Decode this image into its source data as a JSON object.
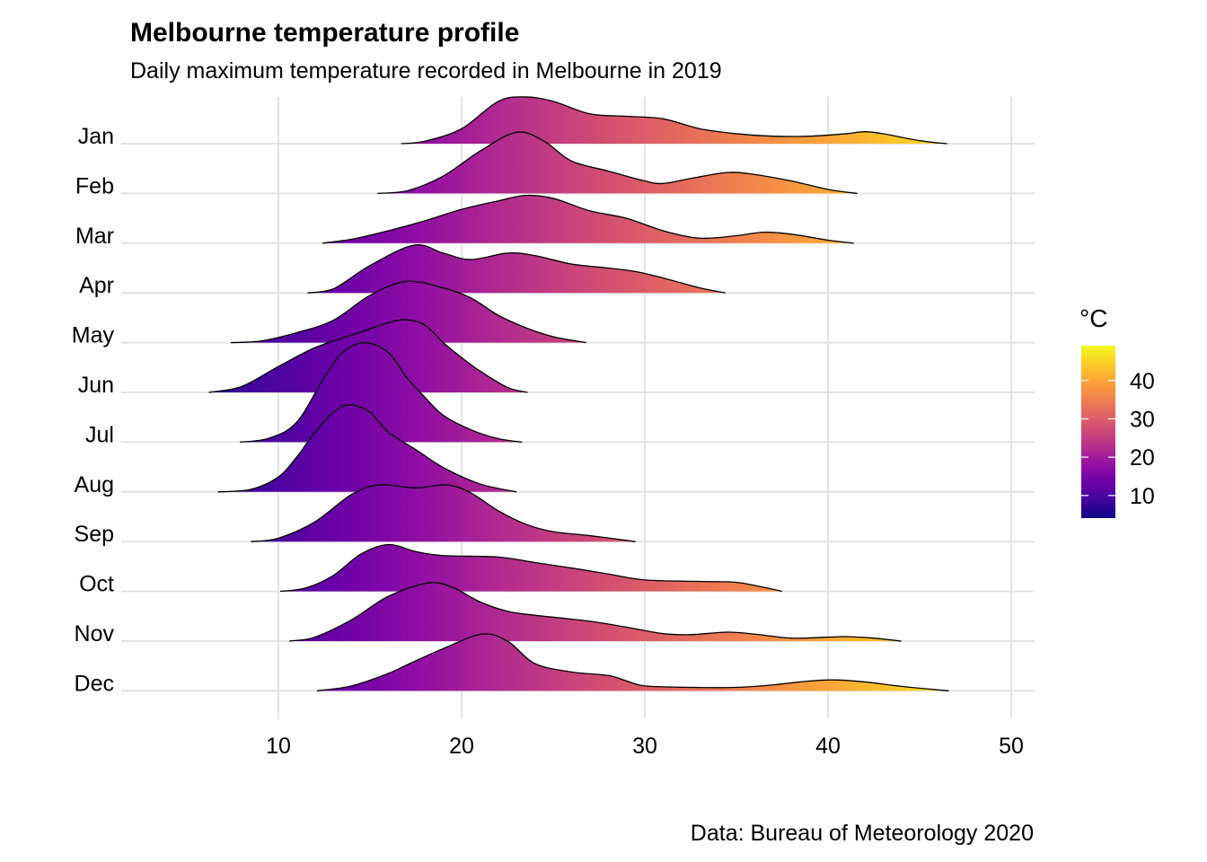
{
  "chart_data": {
    "type": "ridgeline",
    "title": "Melbourne temperature profile",
    "subtitle": "Daily maximum temperature recorded in Melbourne in 2019",
    "caption": "Data: Bureau of Meteorology 2020",
    "xlabel": "",
    "ylabel": "",
    "xlim": [
      1.5,
      51.2
    ],
    "x_ticks": [
      10,
      20,
      30,
      40,
      50
    ],
    "grid": true,
    "legend": {
      "title": "°C",
      "position": "right",
      "ticks": [
        10,
        20,
        30,
        40
      ],
      "range": [
        4.1,
        49.1
      ],
      "palette": "plasma",
      "colors": [
        "#0d0887",
        "#41049d",
        "#6a00a8",
        "#8f0da4",
        "#b12a90",
        "#cc4778",
        "#e16462",
        "#f2844b",
        "#fca636",
        "#fcce25",
        "#f0f921"
      ]
    },
    "series": [
      {
        "name": "Jan",
        "density": [
          [
            16.7,
            0
          ],
          [
            18,
            0.05
          ],
          [
            20,
            0.3
          ],
          [
            22,
            0.85
          ],
          [
            23.5,
            0.94
          ],
          [
            25,
            0.85
          ],
          [
            27,
            0.6
          ],
          [
            29,
            0.55
          ],
          [
            31,
            0.5
          ],
          [
            33,
            0.3
          ],
          [
            35,
            0.2
          ],
          [
            37,
            0.15
          ],
          [
            39,
            0.15
          ],
          [
            41,
            0.2
          ],
          [
            42,
            0.24
          ],
          [
            43,
            0.2
          ],
          [
            45,
            0.06
          ],
          [
            46.5,
            0
          ]
        ]
      },
      {
        "name": "Feb",
        "density": [
          [
            15.4,
            0
          ],
          [
            17,
            0.05
          ],
          [
            19,
            0.35
          ],
          [
            21,
            0.85
          ],
          [
            23,
            1.23
          ],
          [
            24.5,
            1.05
          ],
          [
            26,
            0.65
          ],
          [
            28,
            0.45
          ],
          [
            30,
            0.25
          ],
          [
            31,
            0.2
          ],
          [
            32.5,
            0.3
          ],
          [
            34.5,
            0.42
          ],
          [
            36,
            0.38
          ],
          [
            38,
            0.25
          ],
          [
            40,
            0.08
          ],
          [
            41.6,
            0
          ]
        ]
      },
      {
        "name": "Mar",
        "density": [
          [
            12.4,
            0
          ],
          [
            14,
            0.08
          ],
          [
            16,
            0.25
          ],
          [
            18,
            0.45
          ],
          [
            20,
            0.68
          ],
          [
            22,
            0.85
          ],
          [
            23.5,
            0.96
          ],
          [
            25,
            0.9
          ],
          [
            27,
            0.65
          ],
          [
            29,
            0.5
          ],
          [
            31,
            0.25
          ],
          [
            33,
            0.1
          ],
          [
            35,
            0.15
          ],
          [
            36.5,
            0.22
          ],
          [
            38,
            0.18
          ],
          [
            40,
            0.06
          ],
          [
            41.4,
            0
          ]
        ]
      },
      {
        "name": "Apr",
        "density": [
          [
            11.6,
            0
          ],
          [
            13,
            0.08
          ],
          [
            15,
            0.55
          ],
          [
            17.4,
            0.96
          ],
          [
            19,
            0.8
          ],
          [
            20.5,
            0.67
          ],
          [
            22.5,
            0.8
          ],
          [
            24,
            0.75
          ],
          [
            26,
            0.58
          ],
          [
            28,
            0.5
          ],
          [
            29.5,
            0.43
          ],
          [
            31,
            0.3
          ],
          [
            33,
            0.1
          ],
          [
            34.4,
            0
          ]
        ]
      },
      {
        "name": "May",
        "density": [
          [
            7.4,
            0
          ],
          [
            9,
            0.03
          ],
          [
            11,
            0.2
          ],
          [
            13,
            0.45
          ],
          [
            15,
            0.95
          ],
          [
            17,
            1.23
          ],
          [
            19,
            1.1
          ],
          [
            20.5,
            0.9
          ],
          [
            22,
            0.55
          ],
          [
            23.5,
            0.3
          ],
          [
            25,
            0.12
          ],
          [
            26.8,
            0
          ]
        ]
      },
      {
        "name": "Jun",
        "density": [
          [
            6.2,
            0
          ],
          [
            8,
            0.12
          ],
          [
            10,
            0.52
          ],
          [
            12,
            0.9
          ],
          [
            14,
            1.15
          ],
          [
            16,
            1.4
          ],
          [
            17,
            1.46
          ],
          [
            18,
            1.35
          ],
          [
            19,
            1.0
          ],
          [
            20,
            0.7
          ],
          [
            21,
            0.43
          ],
          [
            22.5,
            0.1
          ],
          [
            23.6,
            0
          ]
        ]
      },
      {
        "name": "Jul",
        "density": [
          [
            7.9,
            0
          ],
          [
            9.5,
            0.08
          ],
          [
            11,
            0.4
          ],
          [
            12.5,
            1.3
          ],
          [
            13.5,
            1.8
          ],
          [
            14.7,
            2.0
          ],
          [
            16,
            1.8
          ],
          [
            17,
            1.3
          ],
          [
            18,
            0.9
          ],
          [
            19,
            0.54
          ],
          [
            20.5,
            0.25
          ],
          [
            22,
            0.07
          ],
          [
            23.3,
            0
          ]
        ]
      },
      {
        "name": "Aug",
        "density": [
          [
            6.7,
            0
          ],
          [
            8.5,
            0.05
          ],
          [
            10,
            0.3
          ],
          [
            11,
            0.7
          ],
          [
            12,
            1.2
          ],
          [
            13,
            1.6
          ],
          [
            13.9,
            1.75
          ],
          [
            15,
            1.6
          ],
          [
            16,
            1.2
          ],
          [
            17.5,
            0.85
          ],
          [
            19,
            0.49
          ],
          [
            21,
            0.16
          ],
          [
            23,
            0
          ]
        ]
      },
      {
        "name": "Sep",
        "density": [
          [
            8.5,
            0
          ],
          [
            10,
            0.07
          ],
          [
            12,
            0.4
          ],
          [
            14,
            0.95
          ],
          [
            15.5,
            1.14
          ],
          [
            17.5,
            1.08
          ],
          [
            19.2,
            1.14
          ],
          [
            20.5,
            0.98
          ],
          [
            22,
            0.62
          ],
          [
            23.5,
            0.35
          ],
          [
            25,
            0.2
          ],
          [
            27,
            0.12
          ],
          [
            29.5,
            0
          ]
        ]
      },
      {
        "name": "Oct",
        "density": [
          [
            10.1,
            0
          ],
          [
            11.5,
            0.07
          ],
          [
            13,
            0.32
          ],
          [
            14.5,
            0.75
          ],
          [
            16,
            0.94
          ],
          [
            17.5,
            0.8
          ],
          [
            19,
            0.72
          ],
          [
            22,
            0.69
          ],
          [
            24,
            0.58
          ],
          [
            26,
            0.47
          ],
          [
            28,
            0.35
          ],
          [
            30,
            0.23
          ],
          [
            33,
            0.2
          ],
          [
            35,
            0.18
          ],
          [
            36.5,
            0.08
          ],
          [
            37.5,
            0
          ]
        ]
      },
      {
        "name": "Nov",
        "density": [
          [
            10.6,
            0
          ],
          [
            12,
            0.08
          ],
          [
            14,
            0.43
          ],
          [
            16,
            0.9
          ],
          [
            18.2,
            1.17
          ],
          [
            19.5,
            1.08
          ],
          [
            21,
            0.79
          ],
          [
            22.5,
            0.6
          ],
          [
            24,
            0.52
          ],
          [
            27,
            0.4
          ],
          [
            29,
            0.28
          ],
          [
            31,
            0.15
          ],
          [
            32.5,
            0.13
          ],
          [
            34.5,
            0.18
          ],
          [
            36,
            0.14
          ],
          [
            38,
            0.06
          ],
          [
            40,
            0.08
          ],
          [
            41,
            0.09
          ],
          [
            42.5,
            0.06
          ],
          [
            44,
            0
          ]
        ]
      },
      {
        "name": "Dec",
        "density": [
          [
            12.1,
            0
          ],
          [
            14,
            0.1
          ],
          [
            16,
            0.35
          ],
          [
            17,
            0.52
          ],
          [
            19,
            0.85
          ],
          [
            21.1,
            1.14
          ],
          [
            22.5,
            1.0
          ],
          [
            24,
            0.55
          ],
          [
            26,
            0.38
          ],
          [
            28,
            0.31
          ],
          [
            29,
            0.2
          ],
          [
            30,
            0.1
          ],
          [
            32.5,
            0.07
          ],
          [
            35,
            0.07
          ],
          [
            37,
            0.12
          ],
          [
            38.5,
            0.18
          ],
          [
            40.2,
            0.22
          ],
          [
            42,
            0.18
          ],
          [
            44,
            0.09
          ],
          [
            46.6,
            0
          ]
        ]
      }
    ]
  }
}
